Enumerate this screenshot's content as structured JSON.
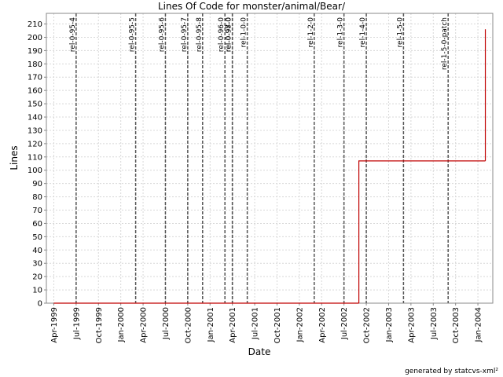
{
  "chart_data": {
    "type": "step",
    "title": "Lines Of Code for monster/animal/Bear/",
    "x_label": "Date",
    "y_label": "Lines",
    "footer": "generated by statcvs-xml²",
    "series": [
      {
        "name": "Lines",
        "color": "#c00000",
        "x": [
          "1999-04",
          "2002-09",
          "2004-02"
        ],
        "values": [
          0,
          107,
          206
        ]
      }
    ],
    "markers": [
      {
        "label": "rel-0-95-4",
        "x": "1999-07"
      },
      {
        "label": "rel-0-95-5",
        "x": "2000-03"
      },
      {
        "label": "rel-0-95-6",
        "x": "2000-07"
      },
      {
        "label": "rel-0-95-7",
        "x": "2000-10"
      },
      {
        "label": "rel-0-95-8",
        "x": "2000-12"
      },
      {
        "label": "rel-0-96-0",
        "x": "2001-03"
      },
      {
        "label": "rel-0-97-0",
        "x": "2001-04"
      },
      {
        "label": "rel-0-98-0",
        "x": "2001-04"
      },
      {
        "label": "rel-1-0-0",
        "x": "2001-06"
      },
      {
        "label": "rel-1-2-0",
        "x": "2002-03"
      },
      {
        "label": "rel-1-3-0",
        "x": "2002-07"
      },
      {
        "label": "rel-1-4-0",
        "x": "2002-10"
      },
      {
        "label": "rel-1-5-0",
        "x": "2003-03"
      },
      {
        "label": "rel-1-5-0-patch",
        "x": "2003-09"
      }
    ],
    "xlim": [
      "1999-03",
      "2004-03"
    ],
    "xticks": [
      {
        "value": "1999-04",
        "label": "Apr-1999"
      },
      {
        "value": "1999-07",
        "label": "Jul-1999"
      },
      {
        "value": "1999-10",
        "label": "Oct-1999"
      },
      {
        "value": "2000-01",
        "label": "Jan-2000"
      },
      {
        "value": "2000-04",
        "label": "Apr-2000"
      },
      {
        "value": "2000-07",
        "label": "Jul-2000"
      },
      {
        "value": "2000-10",
        "label": "Oct-2000"
      },
      {
        "value": "2001-01",
        "label": "Jan-2001"
      },
      {
        "value": "2001-04",
        "label": "Apr-2001"
      },
      {
        "value": "2001-07",
        "label": "Jul-2001"
      },
      {
        "value": "2001-10",
        "label": "Oct-2001"
      },
      {
        "value": "2002-01",
        "label": "Jan-2002"
      },
      {
        "value": "2002-04",
        "label": "Apr-2002"
      },
      {
        "value": "2002-07",
        "label": "Jul-2002"
      },
      {
        "value": "2002-10",
        "label": "Oct-2002"
      },
      {
        "value": "2003-01",
        "label": "Jan-2003"
      },
      {
        "value": "2003-04",
        "label": "Apr-2003"
      },
      {
        "value": "2003-07",
        "label": "Jul-2003"
      },
      {
        "value": "2003-10",
        "label": "Oct-2003"
      },
      {
        "value": "2004-01",
        "label": "Jan-2004"
      }
    ],
    "ylim": [
      0,
      218
    ],
    "yticks": [
      0,
      10,
      20,
      30,
      40,
      50,
      60,
      70,
      80,
      90,
      100,
      110,
      120,
      130,
      140,
      150,
      160,
      170,
      180,
      190,
      200,
      210
    ],
    "grid": true
  }
}
